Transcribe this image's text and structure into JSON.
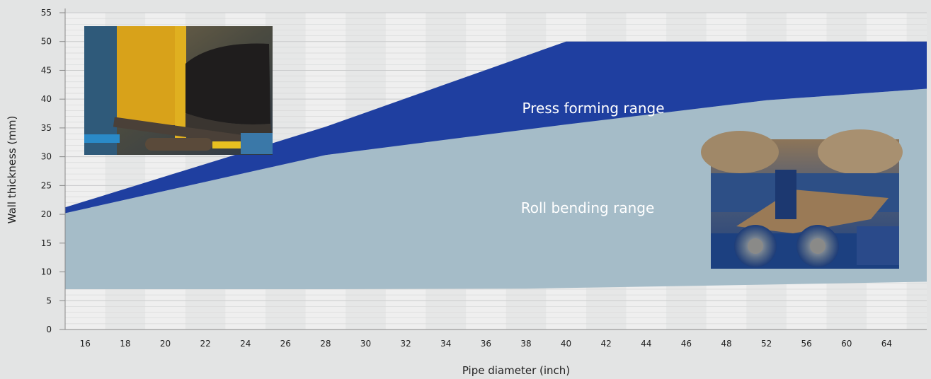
{
  "chart_data": {
    "type": "area",
    "xlabel": "Pipe diameter (inch)",
    "ylabel": "Wall thickness (mm)",
    "ylim": [
      0,
      55
    ],
    "yticks": [
      0,
      5,
      10,
      15,
      20,
      25,
      30,
      35,
      40,
      45,
      50,
      55
    ],
    "categories": [
      "16",
      "18",
      "20",
      "22",
      "24",
      "26",
      "28",
      "30",
      "32",
      "34",
      "36",
      "38",
      "40",
      "42",
      "44",
      "46",
      "48",
      "52",
      "56",
      "60",
      "64"
    ],
    "series": [
      {
        "name": "Roll bending range",
        "color": "#a5bcc8",
        "points": [
          {
            "x": "15",
            "upper": 20.2,
            "lower": 7.0
          },
          {
            "x": "28",
            "upper": 30.3,
            "lower": 7.0
          },
          {
            "x": "38",
            "upper": 34.8,
            "lower": 7.1
          },
          {
            "x": "52",
            "upper": 39.8,
            "lower": 7.8
          },
          {
            "x": "65",
            "upper": 41.8,
            "lower": 8.3
          }
        ]
      },
      {
        "name": "Press forming range",
        "color": "#1f3fa0",
        "points": [
          {
            "x": "15",
            "upper": 21.2,
            "lower": 20.2
          },
          {
            "x": "28",
            "upper": 35.2,
            "lower": 30.3
          },
          {
            "x": "40",
            "upper": 50.0,
            "lower": 35.6
          },
          {
            "x": "52",
            "upper": 50.0,
            "lower": 39.8
          },
          {
            "x": "65",
            "upper": 50.0,
            "lower": 41.8
          }
        ]
      }
    ],
    "grid": true,
    "legend": "none"
  }
}
